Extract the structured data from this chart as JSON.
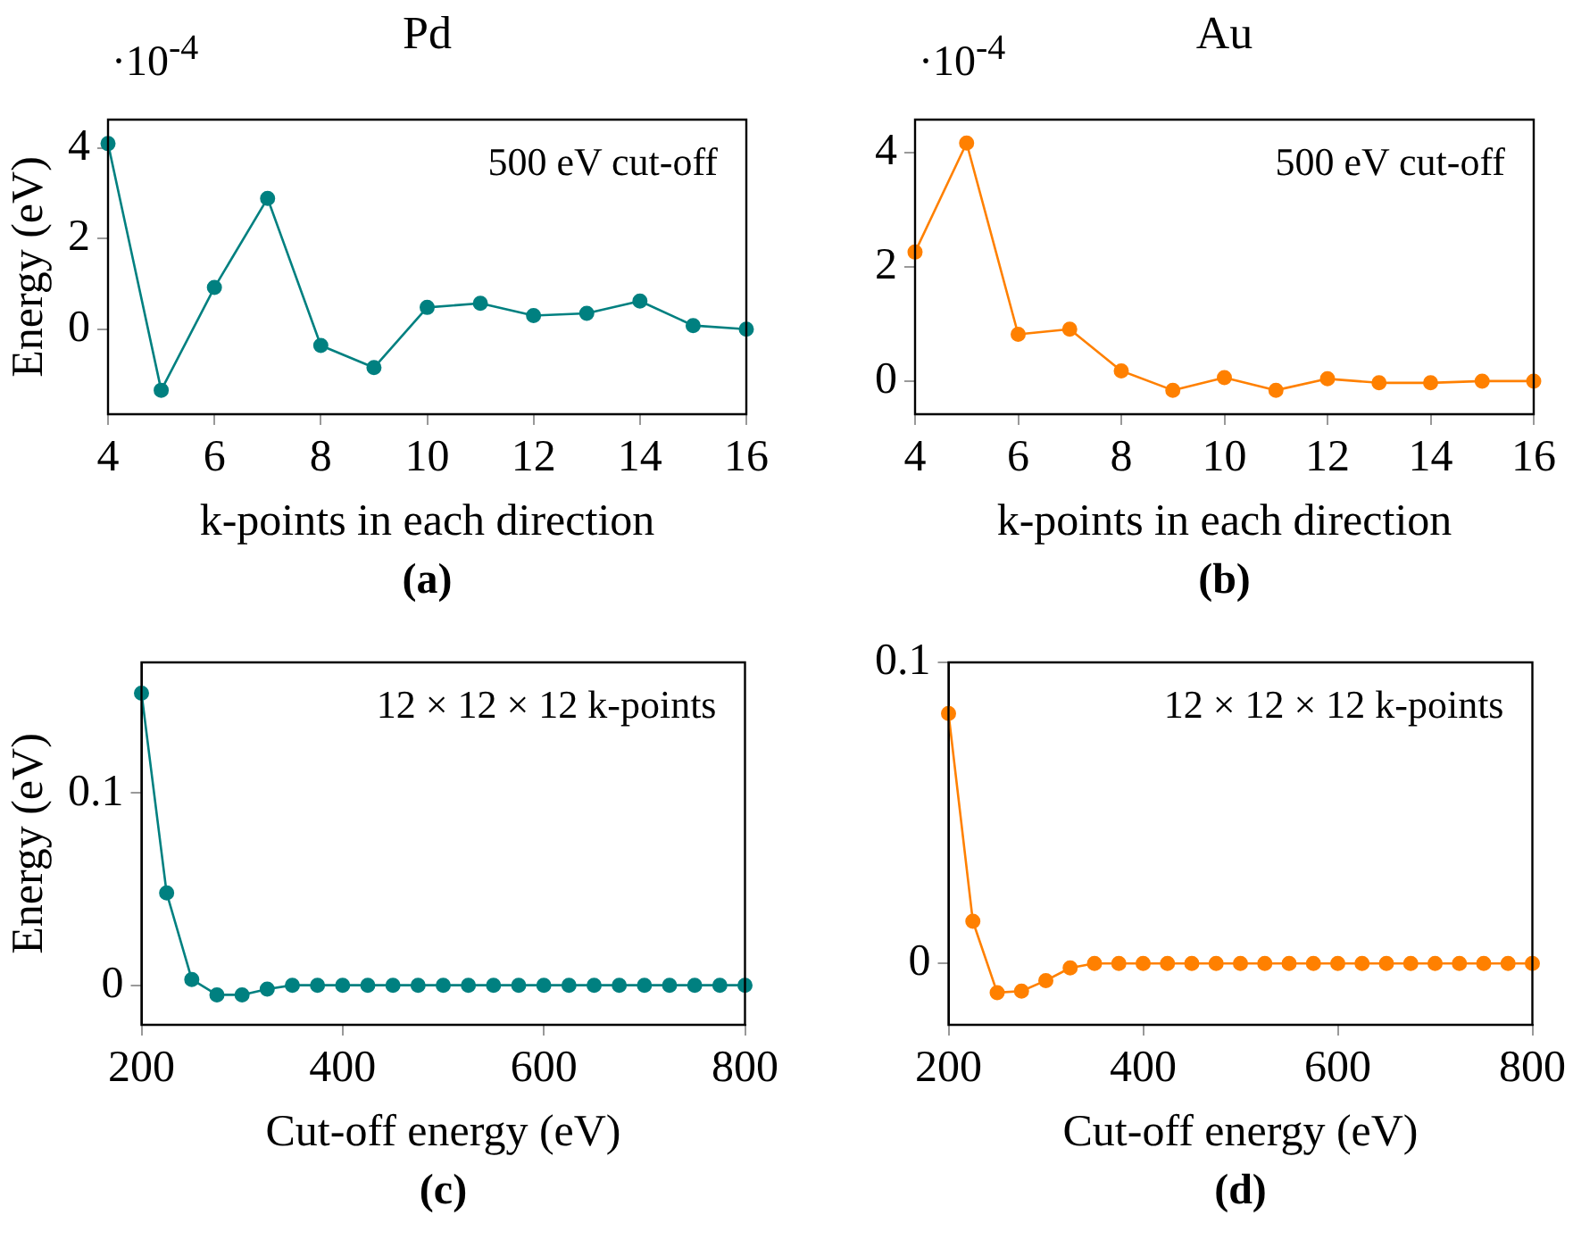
{
  "chart_data": [
    {
      "type": "line",
      "title": "Pd",
      "xlabel": "k-points in each direction",
      "ylabel": "Energy (eV)",
      "annotations": [
        "·10$^{-4}$",
        "500 eV cut-off",
        "(a)"
      ],
      "x": [
        4,
        5,
        6,
        7,
        8,
        9,
        10,
        11,
        12,
        13,
        14,
        15,
        16
      ],
      "series": [
        {
          "color": "#008080",
          "values": [
            4.1,
            -1.35,
            0.92,
            2.89,
            -0.36,
            -0.85,
            0.48,
            0.57,
            0.3,
            0.35,
            0.62,
            0.08,
            0
          ]
        }
      ],
      "xlim": [
        4,
        16
      ],
      "xticks": [
        4,
        6,
        8,
        10,
        12,
        14,
        16
      ],
      "ylim": [
        -1.88,
        4.63
      ],
      "yticks": [
        0,
        2,
        4
      ],
      "marker": "circle",
      "legend": false,
      "grid": false
    },
    {
      "type": "line",
      "title": "Au",
      "xlabel": "k-points in each direction",
      "annotations": [
        "·10$^{-4}$",
        "500 eV cut-off",
        "(b)"
      ],
      "x": [
        4,
        5,
        6,
        7,
        8,
        9,
        10,
        11,
        12,
        13,
        14,
        15,
        16
      ],
      "series": [
        {
          "color": "#ff8000",
          "values": [
            2.26,
            4.17,
            0.82,
            0.91,
            0.18,
            -0.16,
            0.06,
            -0.16,
            0.04,
            -0.03,
            -0.03,
            0,
            0
          ]
        }
      ],
      "xlim": [
        4,
        16
      ],
      "xticks": [
        4,
        6,
        8,
        10,
        12,
        14,
        16
      ],
      "ylim": [
        -0.58,
        4.58
      ],
      "yticks": [
        0,
        2,
        4
      ],
      "marker": "circle",
      "legend": false,
      "grid": false
    },
    {
      "type": "line",
      "xlabel": "Cut-off energy (eV)",
      "ylabel": "Energy (eV)",
      "annotations": [
        "12 × 12 × 12 k-points",
        "(c)"
      ],
      "x": [
        200,
        225,
        250,
        275,
        300,
        325,
        350,
        375,
        400,
        425,
        450,
        475,
        500,
        525,
        550,
        575,
        600,
        625,
        650,
        675,
        700,
        725,
        750,
        775,
        800
      ],
      "series": [
        {
          "color": "#008080",
          "values": [
            0.152,
            0.048,
            0.003,
            -0.005,
            -0.005,
            -0.002,
            0,
            0,
            0,
            0,
            0,
            0,
            0,
            0,
            0,
            0,
            0,
            0,
            0,
            0,
            0,
            0,
            0,
            0,
            0
          ]
        }
      ],
      "xlim": [
        200,
        800
      ],
      "xticks": [
        200,
        400,
        600,
        800
      ],
      "ylim": [
        -0.0206,
        0.168
      ],
      "yticks": [
        0,
        0.1
      ],
      "marker": "circle",
      "legend": false,
      "grid": false
    },
    {
      "type": "line",
      "xlabel": "Cut-off energy (eV)",
      "annotations": [
        "12 × 12 × 12 k-points",
        "(d)"
      ],
      "x": [
        200,
        225,
        250,
        275,
        300,
        325,
        350,
        375,
        400,
        425,
        450,
        475,
        500,
        525,
        550,
        575,
        600,
        625,
        650,
        675,
        700,
        725,
        750,
        775,
        800
      ],
      "series": [
        {
          "color": "#ff8000",
          "values": [
            0.083,
            0.014,
            -0.0097,
            -0.0092,
            -0.0057,
            -0.0015,
            0,
            0,
            0,
            0,
            0,
            0,
            0,
            0,
            0,
            0,
            0,
            0,
            0,
            0,
            0,
            0,
            0,
            0,
            0
          ]
        }
      ],
      "xlim": [
        200,
        800
      ],
      "xticks": [
        200,
        400,
        600,
        800
      ],
      "ylim": [
        -0.0204,
        0.1
      ],
      "yticks": [
        0,
        0.1
      ],
      "marker": "circle",
      "legend": false,
      "grid": false
    }
  ]
}
